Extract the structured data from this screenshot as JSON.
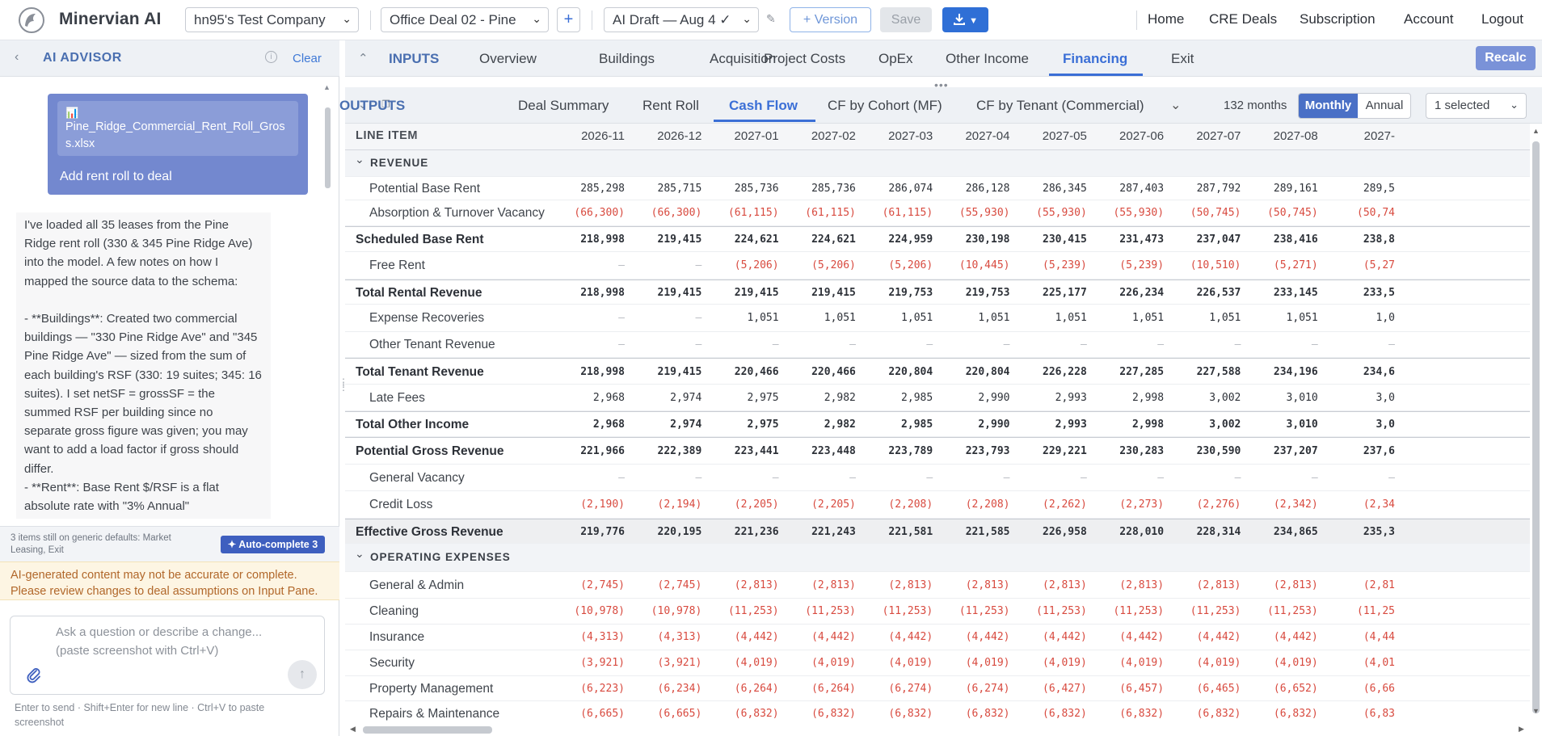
{
  "app": {
    "brand": "Minervian AI"
  },
  "topbar": {
    "company": "hn95's Test Company",
    "deal": "Office Deal 02 - Pine",
    "add_label": "+",
    "draft": "AI Draft — Aug 4 ✓",
    "version_label": "+ Version",
    "save_label": "Save",
    "download_icon": "download-icon",
    "nav": [
      "Home",
      "CRE Deals",
      "Subscription",
      "Account",
      "Logout"
    ]
  },
  "advisor": {
    "title": "AI ADVISOR",
    "clear_label": "Clear",
    "file_name": "Pine_Ridge_Commercial_Rent_Roll_Gross.xlsx",
    "file_caption": "Add rent roll to deal",
    "message": "I've loaded all 35 leases from the Pine Ridge rent roll (330 & 345 Pine Ridge Ave) into the model. A few notes on how I mapped the source data to the schema:\n\n- **Buildings**: Created two commercial buildings — \"330 Pine Ridge Ave\" and \"345 Pine Ridge Ave\" — sized from the sum of each building's RSF (330: 19 suites; 345: 16 suites). I set netSF = grossSF = the summed RSF per building since no separate gross figure was given; you may want to add a load factor if gross should differ.\n- **Rent**: Base Rent $/RSF is a flat absolute rate with \"3% Annual\"",
    "defaults_note": "3 items still on generic defaults: Market Leasing, Exit",
    "autocomplete_label": "✦ Auto-complete 3",
    "warning": "AI-generated content may not be accurate or complete. Please review changes to deal assumptions on Input Pane.",
    "composer_placeholder": "Ask a question or describe a change...\n(paste screenshot with Ctrl+V)",
    "hint": "Enter to send · Shift+Enter for new line · Ctrl+V to paste screenshot"
  },
  "inputs": {
    "title": "INPUTS",
    "tabs": [
      "Overview",
      "Buildings",
      "Acquisition",
      "Project Costs",
      "OpEx",
      "Other Income",
      "Financing",
      "Exit"
    ],
    "active_tab": "Financing",
    "recalc_label": "Recalc"
  },
  "outputs": {
    "title": "OUTPUTS",
    "tabs": [
      "Deal Summary",
      "Rent Roll",
      "Cash Flow",
      "CF by Cohort (MF)",
      "CF by Tenant (Commercial)"
    ],
    "active_tab": "Cash Flow",
    "months_label": "132 months",
    "period_options": [
      "Monthly",
      "Annual"
    ],
    "period_selected": "Monthly",
    "filter_value": "1 selected"
  },
  "table": {
    "line_item_header": "LINE ITEM",
    "columns": [
      "2026-11",
      "2026-12",
      "2027-01",
      "2027-02",
      "2027-03",
      "2027-04",
      "2027-05",
      "2027-06",
      "2027-07",
      "2027-08",
      "2027-"
    ],
    "rows": [
      {
        "label": "REVENUE",
        "kind": "section"
      },
      {
        "label": "Potential Base Rent",
        "kind": "item",
        "values": [
          "285,298",
          "285,715",
          "285,736",
          "285,736",
          "286,074",
          "286,128",
          "286,345",
          "287,403",
          "287,792",
          "289,161",
          "289,5"
        ]
      },
      {
        "label": "Absorption & Turnover Vacancy",
        "kind": "item",
        "values": [
          "(66,300)",
          "(66,300)",
          "(61,115)",
          "(61,115)",
          "(61,115)",
          "(55,930)",
          "(55,930)",
          "(55,930)",
          "(50,745)",
          "(50,745)",
          "(50,74"
        ]
      },
      {
        "label": "Scheduled Base Rent",
        "kind": "total",
        "values": [
          "218,998",
          "219,415",
          "224,621",
          "224,621",
          "224,959",
          "230,198",
          "230,415",
          "231,473",
          "237,047",
          "238,416",
          "238,8"
        ]
      },
      {
        "label": "Free Rent",
        "kind": "item",
        "values": [
          "—",
          "—",
          "(5,206)",
          "(5,206)",
          "(5,206)",
          "(10,445)",
          "(5,239)",
          "(5,239)",
          "(10,510)",
          "(5,271)",
          "(5,27"
        ]
      },
      {
        "label": "Total Rental Revenue",
        "kind": "total",
        "values": [
          "218,998",
          "219,415",
          "219,415",
          "219,415",
          "219,753",
          "219,753",
          "225,177",
          "226,234",
          "226,537",
          "233,145",
          "233,5"
        ]
      },
      {
        "label": "Expense Recoveries",
        "kind": "item",
        "values": [
          "—",
          "—",
          "1,051",
          "1,051",
          "1,051",
          "1,051",
          "1,051",
          "1,051",
          "1,051",
          "1,051",
          "1,0"
        ]
      },
      {
        "label": "Other Tenant Revenue",
        "kind": "item",
        "values": [
          "—",
          "—",
          "—",
          "—",
          "—",
          "—",
          "—",
          "—",
          "—",
          "—",
          "—"
        ]
      },
      {
        "label": "Total Tenant Revenue",
        "kind": "total",
        "values": [
          "218,998",
          "219,415",
          "220,466",
          "220,466",
          "220,804",
          "220,804",
          "226,228",
          "227,285",
          "227,588",
          "234,196",
          "234,6"
        ]
      },
      {
        "label": "Late Fees",
        "kind": "item",
        "values": [
          "2,968",
          "2,974",
          "2,975",
          "2,982",
          "2,985",
          "2,990",
          "2,993",
          "2,998",
          "3,002",
          "3,010",
          "3,0"
        ]
      },
      {
        "label": "Total Other Income",
        "kind": "total",
        "values": [
          "2,968",
          "2,974",
          "2,975",
          "2,982",
          "2,985",
          "2,990",
          "2,993",
          "2,998",
          "3,002",
          "3,010",
          "3,0"
        ]
      },
      {
        "label": "Potential Gross Revenue",
        "kind": "total",
        "values": [
          "221,966",
          "222,389",
          "223,441",
          "223,448",
          "223,789",
          "223,793",
          "229,221",
          "230,283",
          "230,590",
          "237,207",
          "237,6"
        ]
      },
      {
        "label": "General Vacancy",
        "kind": "item",
        "values": [
          "—",
          "—",
          "—",
          "—",
          "—",
          "—",
          "—",
          "—",
          "—",
          "—",
          "—"
        ]
      },
      {
        "label": "Credit Loss",
        "kind": "item",
        "values": [
          "(2,190)",
          "(2,194)",
          "(2,205)",
          "(2,205)",
          "(2,208)",
          "(2,208)",
          "(2,262)",
          "(2,273)",
          "(2,276)",
          "(2,342)",
          "(2,34"
        ]
      },
      {
        "label": "Effective Gross Revenue",
        "kind": "egr",
        "values": [
          "219,776",
          "220,195",
          "221,236",
          "221,243",
          "221,581",
          "221,585",
          "226,958",
          "228,010",
          "228,314",
          "234,865",
          "235,3"
        ]
      },
      {
        "label": "OPERATING EXPENSES",
        "kind": "section"
      },
      {
        "label": "General & Admin",
        "kind": "item",
        "values": [
          "(2,745)",
          "(2,745)",
          "(2,813)",
          "(2,813)",
          "(2,813)",
          "(2,813)",
          "(2,813)",
          "(2,813)",
          "(2,813)",
          "(2,813)",
          "(2,81"
        ]
      },
      {
        "label": "Cleaning",
        "kind": "item",
        "values": [
          "(10,978)",
          "(10,978)",
          "(11,253)",
          "(11,253)",
          "(11,253)",
          "(11,253)",
          "(11,253)",
          "(11,253)",
          "(11,253)",
          "(11,253)",
          "(11,25"
        ]
      },
      {
        "label": "Insurance",
        "kind": "item",
        "values": [
          "(4,313)",
          "(4,313)",
          "(4,442)",
          "(4,442)",
          "(4,442)",
          "(4,442)",
          "(4,442)",
          "(4,442)",
          "(4,442)",
          "(4,442)",
          "(4,44"
        ]
      },
      {
        "label": "Security",
        "kind": "item",
        "values": [
          "(3,921)",
          "(3,921)",
          "(4,019)",
          "(4,019)",
          "(4,019)",
          "(4,019)",
          "(4,019)",
          "(4,019)",
          "(4,019)",
          "(4,019)",
          "(4,01"
        ]
      },
      {
        "label": "Property Management",
        "kind": "item",
        "values": [
          "(6,223)",
          "(6,234)",
          "(6,264)",
          "(6,264)",
          "(6,274)",
          "(6,274)",
          "(6,427)",
          "(6,457)",
          "(6,465)",
          "(6,652)",
          "(6,66"
        ]
      },
      {
        "label": "Repairs & Maintenance",
        "kind": "item",
        "values": [
          "(6,665)",
          "(6,665)",
          "(6,832)",
          "(6,832)",
          "(6,832)",
          "(6,832)",
          "(6,832)",
          "(6,832)",
          "(6,832)",
          "(6,832)",
          "(6,83"
        ]
      }
    ]
  }
}
